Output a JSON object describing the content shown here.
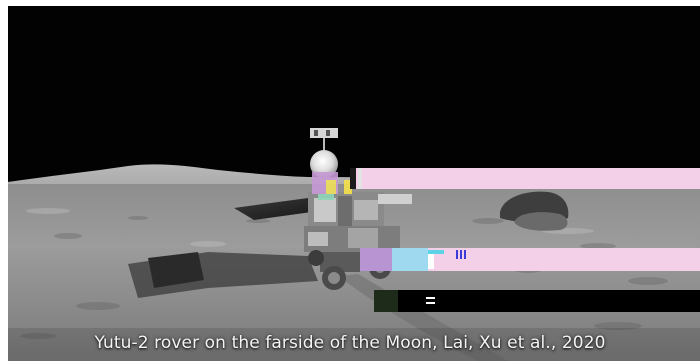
{
  "image": {
    "caption": "Yutu-2 rover on the farside of the Moon, Lai, Xu et al., 2020",
    "subject": "lunar-rover",
    "colors": {
      "sky": "#020202",
      "regolith": "#9a9a9a",
      "glitch_pink": "#f3cfe8",
      "glitch_black": "#000000"
    }
  }
}
